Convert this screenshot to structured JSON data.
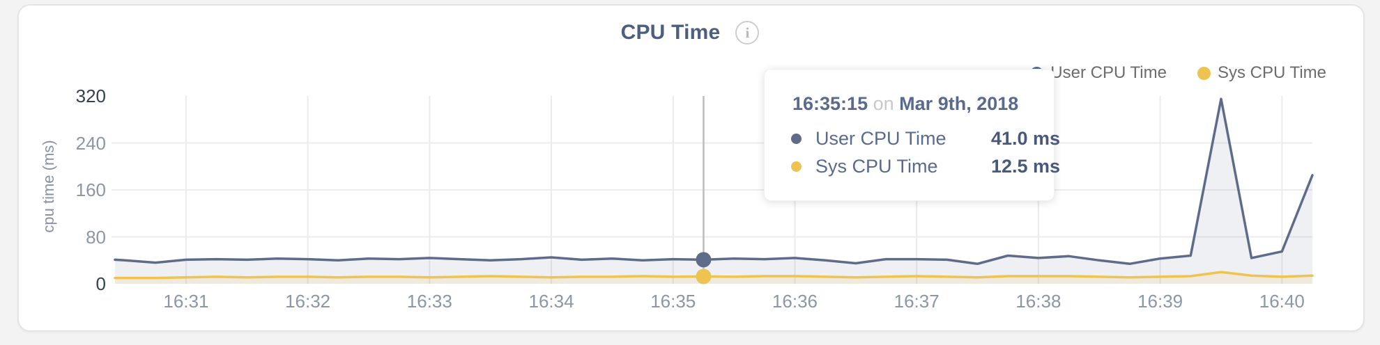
{
  "title": {
    "text": "CPU Time",
    "info_icon": "i"
  },
  "legend": [
    {
      "label": "User CPU Time",
      "color": "#5e6c89"
    },
    {
      "label": "Sys CPU Time",
      "color": "#efc34f"
    }
  ],
  "tooltip": {
    "time": "16:35:15",
    "conjunction": "on",
    "date": "Mar 9th, 2018",
    "rows": [
      {
        "label": "User CPU Time",
        "value": "41.0 ms",
        "color": "#5e6c89"
      },
      {
        "label": "Sys CPU Time",
        "value": "12.5 ms",
        "color": "#efc34f"
      }
    ]
  },
  "chart_data": {
    "type": "area",
    "title": "CPU Time",
    "xlabel": "",
    "ylabel": "cpu time (ms)",
    "ylim": [
      0,
      320
    ],
    "y_ticks": [
      320,
      240,
      160,
      80,
      0
    ],
    "y_ticks_emphasized": [
      320,
      0
    ],
    "grid": true,
    "legend_position": "top-right",
    "x_domain_seconds_after_16_30": [
      25,
      615
    ],
    "x_ticks": [
      {
        "t": 60,
        "label": "16:31"
      },
      {
        "t": 120,
        "label": "16:32"
      },
      {
        "t": 180,
        "label": "16:33"
      },
      {
        "t": 240,
        "label": "16:34"
      },
      {
        "t": 300,
        "label": "16:35"
      },
      {
        "t": 360,
        "label": "16:36"
      },
      {
        "t": 420,
        "label": "16:37"
      },
      {
        "t": 480,
        "label": "16:38"
      },
      {
        "t": 540,
        "label": "16:39"
      },
      {
        "t": 600,
        "label": "16:40"
      }
    ],
    "series": [
      {
        "name": "User CPU Time",
        "unit": "ms",
        "color": "#5e6c89",
        "fill": "rgba(94,108,137,0.10)",
        "points": [
          [
            25,
            41
          ],
          [
            30,
            40
          ],
          [
            45,
            36
          ],
          [
            60,
            41
          ],
          [
            75,
            42
          ],
          [
            90,
            41
          ],
          [
            105,
            43
          ],
          [
            120,
            42
          ],
          [
            135,
            40
          ],
          [
            150,
            43
          ],
          [
            165,
            42
          ],
          [
            180,
            44
          ],
          [
            195,
            42
          ],
          [
            210,
            40
          ],
          [
            225,
            42
          ],
          [
            240,
            45
          ],
          [
            255,
            41
          ],
          [
            270,
            43
          ],
          [
            285,
            40
          ],
          [
            300,
            42
          ],
          [
            315,
            41
          ],
          [
            330,
            43
          ],
          [
            345,
            42
          ],
          [
            360,
            44
          ],
          [
            375,
            40
          ],
          [
            390,
            35
          ],
          [
            405,
            42
          ],
          [
            420,
            42
          ],
          [
            435,
            41
          ],
          [
            450,
            34
          ],
          [
            465,
            48
          ],
          [
            480,
            44
          ],
          [
            495,
            47
          ],
          [
            510,
            40
          ],
          [
            525,
            34
          ],
          [
            540,
            43
          ],
          [
            555,
            48
          ],
          [
            570,
            315
          ],
          [
            585,
            44
          ],
          [
            600,
            55
          ],
          [
            615,
            185
          ]
        ]
      },
      {
        "name": "Sys CPU Time",
        "unit": "ms",
        "color": "#efc34f",
        "fill": "rgba(239,195,79,0.13)",
        "points": [
          [
            25,
            10
          ],
          [
            30,
            10
          ],
          [
            45,
            10
          ],
          [
            60,
            11
          ],
          [
            75,
            12
          ],
          [
            90,
            11
          ],
          [
            105,
            12
          ],
          [
            120,
            12
          ],
          [
            135,
            11
          ],
          [
            150,
            12
          ],
          [
            165,
            12
          ],
          [
            180,
            11
          ],
          [
            195,
            12
          ],
          [
            210,
            13
          ],
          [
            225,
            12
          ],
          [
            240,
            11
          ],
          [
            255,
            12
          ],
          [
            270,
            12
          ],
          [
            285,
            13
          ],
          [
            300,
            12
          ],
          [
            315,
            12.5
          ],
          [
            330,
            12
          ],
          [
            345,
            13
          ],
          [
            360,
            13
          ],
          [
            375,
            12
          ],
          [
            390,
            11
          ],
          [
            405,
            12
          ],
          [
            420,
            13
          ],
          [
            435,
            12
          ],
          [
            450,
            11
          ],
          [
            465,
            13
          ],
          [
            480,
            13
          ],
          [
            495,
            13
          ],
          [
            510,
            12
          ],
          [
            525,
            11
          ],
          [
            540,
            12
          ],
          [
            555,
            13
          ],
          [
            570,
            20
          ],
          [
            585,
            14
          ],
          [
            600,
            12
          ],
          [
            615,
            14
          ]
        ],
        "hover_point": {
          "t": 315,
          "time": "16:35:15",
          "values_ms": {
            "User CPU Time": 41.0,
            "Sys CPU Time": 12.5
          }
        }
      }
    ]
  }
}
